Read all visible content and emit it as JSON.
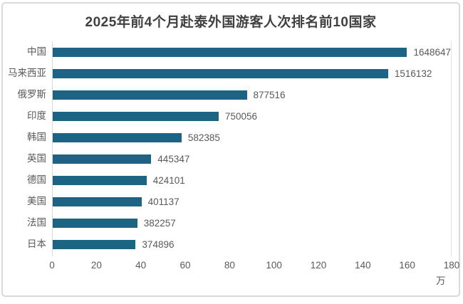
{
  "chart_data": {
    "type": "bar",
    "orientation": "horizontal",
    "title": "2025年前4个月赴泰外国游客人次排名前10国家",
    "categories": [
      "中国",
      "马来西亚",
      "俄罗斯",
      "印度",
      "韩国",
      "英国",
      "德国",
      "美国",
      "法国",
      "日本"
    ],
    "values": [
      1648647,
      1516132,
      877516,
      750056,
      582385,
      445347,
      424101,
      401137,
      382257,
      374896
    ],
    "xlabel": "",
    "ylabel": "",
    "x_ticks": [
      0,
      20,
      40,
      60,
      80,
      100,
      120,
      140,
      160,
      180
    ],
    "x_tick_scale": 10000,
    "x_axis_unit": "万",
    "xlim": [
      0,
      1800000
    ],
    "grid": false,
    "legend": false,
    "bar_color": "#1d6383",
    "text_color": "#595959",
    "title_color": "#404040",
    "axis_line_color": "#d9d9d9"
  }
}
